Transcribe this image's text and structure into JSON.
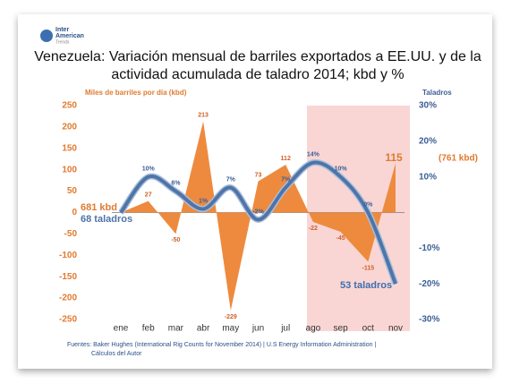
{
  "chart_data": {
    "type": "combo",
    "logo": [
      "Inter",
      "American",
      "Trends"
    ],
    "title": [
      "Venezuela: Variación mensual de barriles exportados a EE.UU. y de la",
      "actividad acumulada de taladro 2014; kbd y %"
    ],
    "y_label": "Miles de barriles por día  (kbd)",
    "y2_label": "Taladros",
    "categories": [
      "ene",
      "feb",
      "mar",
      "abr",
      "may",
      "jun",
      "jul",
      "ago",
      "sep",
      "oct",
      "nov"
    ],
    "series": [
      {
        "kind": "area",
        "color": "#ee8a3e",
        "values": [
          0,
          27,
          -50,
          213,
          -229,
          73,
          112,
          -22,
          -45,
          -115,
          115
        ],
        "value_labels": [
          null,
          "27",
          "-50",
          "213",
          "-229",
          "73",
          "112",
          "-22",
          "-45",
          "-115",
          null
        ]
      },
      {
        "kind": "line",
        "axis": "y2",
        "color": "#4f74a8",
        "values": [
          0,
          10,
          6,
          1,
          7,
          -2,
          7,
          14,
          10,
          0,
          -20
        ],
        "value_labels": [
          null,
          "10%",
          "6%",
          "1%",
          "7%",
          "-2%",
          "7%",
          "14%",
          "10%",
          "0%",
          null
        ]
      }
    ],
    "ylim": [
      -250,
      250
    ],
    "yticks": [
      -250,
      -200,
      -150,
      -100,
      -50,
      0,
      50,
      100,
      150,
      200,
      250
    ],
    "y2lim": [
      -30,
      30
    ],
    "y2ticks": [
      {
        "value": -30,
        "label": "-30%"
      },
      {
        "value": -20,
        "label": "-20%"
      },
      {
        "value": -10,
        "label": "-10%"
      },
      {
        "value": 10,
        "label": "10%"
      },
      {
        "value": 20,
        "label": "20%"
      },
      {
        "value": 30,
        "label": "30%"
      }
    ],
    "annotations": [
      "681 kbd",
      "68 taladros",
      "53 taladros",
      "115",
      "(761 kbd)"
    ],
    "source": [
      "Fuentes: Baker Hughes (International Rig Counts for November 2014) |  U.S Energy Information Administration |",
      "Cálculos del Autor"
    ]
  }
}
